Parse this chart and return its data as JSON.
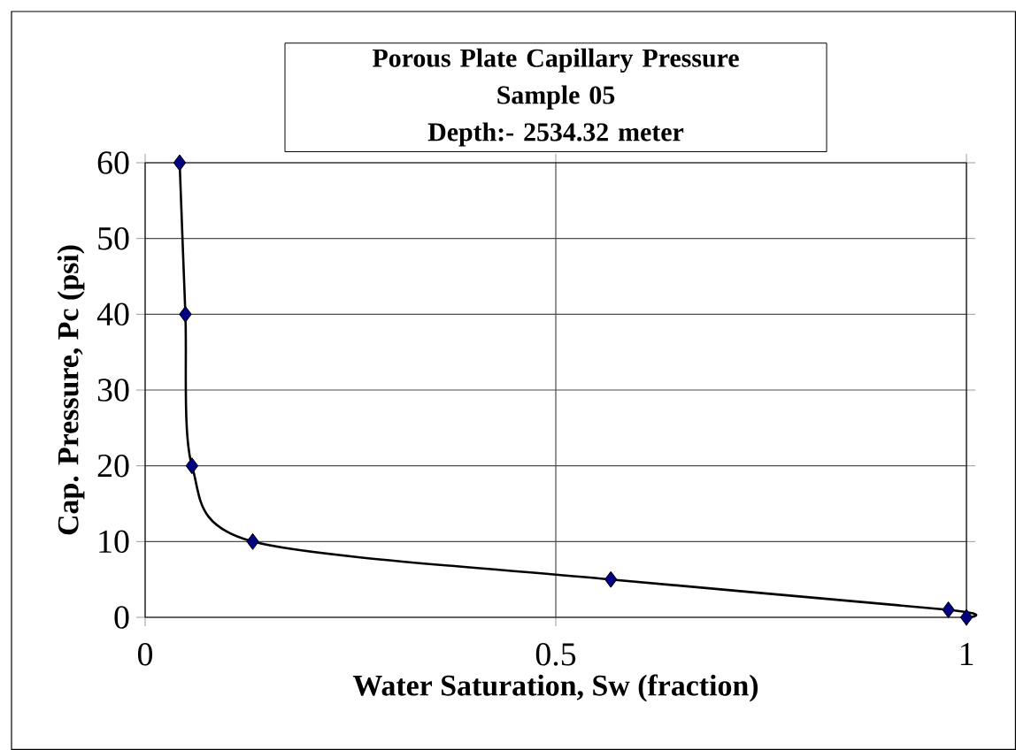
{
  "chart_data": {
    "type": "line",
    "title": "Porous Plate Capillary Pressure\nSample 05\nDepth:- 2534.32 meter",
    "xlabel": "Water Saturation, Sw (fraction)",
    "ylabel": "Cap. Pressure, Pc (psi)",
    "series": [
      {
        "color": "#000080",
        "x": [
          0.042,
          0.049,
          0.057,
          0.131,
          0.567,
          0.978,
          1.0
        ],
        "values": [
          60,
          40,
          20,
          10,
          5,
          1,
          0
        ]
      }
    ],
    "xlim": [
      0,
      1
    ],
    "ylim": [
      0,
      60
    ],
    "xticks": [
      0,
      0.5,
      1
    ],
    "yticks": [
      0,
      10,
      20,
      30,
      40,
      50,
      60
    ],
    "grid": true,
    "marker": "diamond",
    "line_style": "solid"
  }
}
